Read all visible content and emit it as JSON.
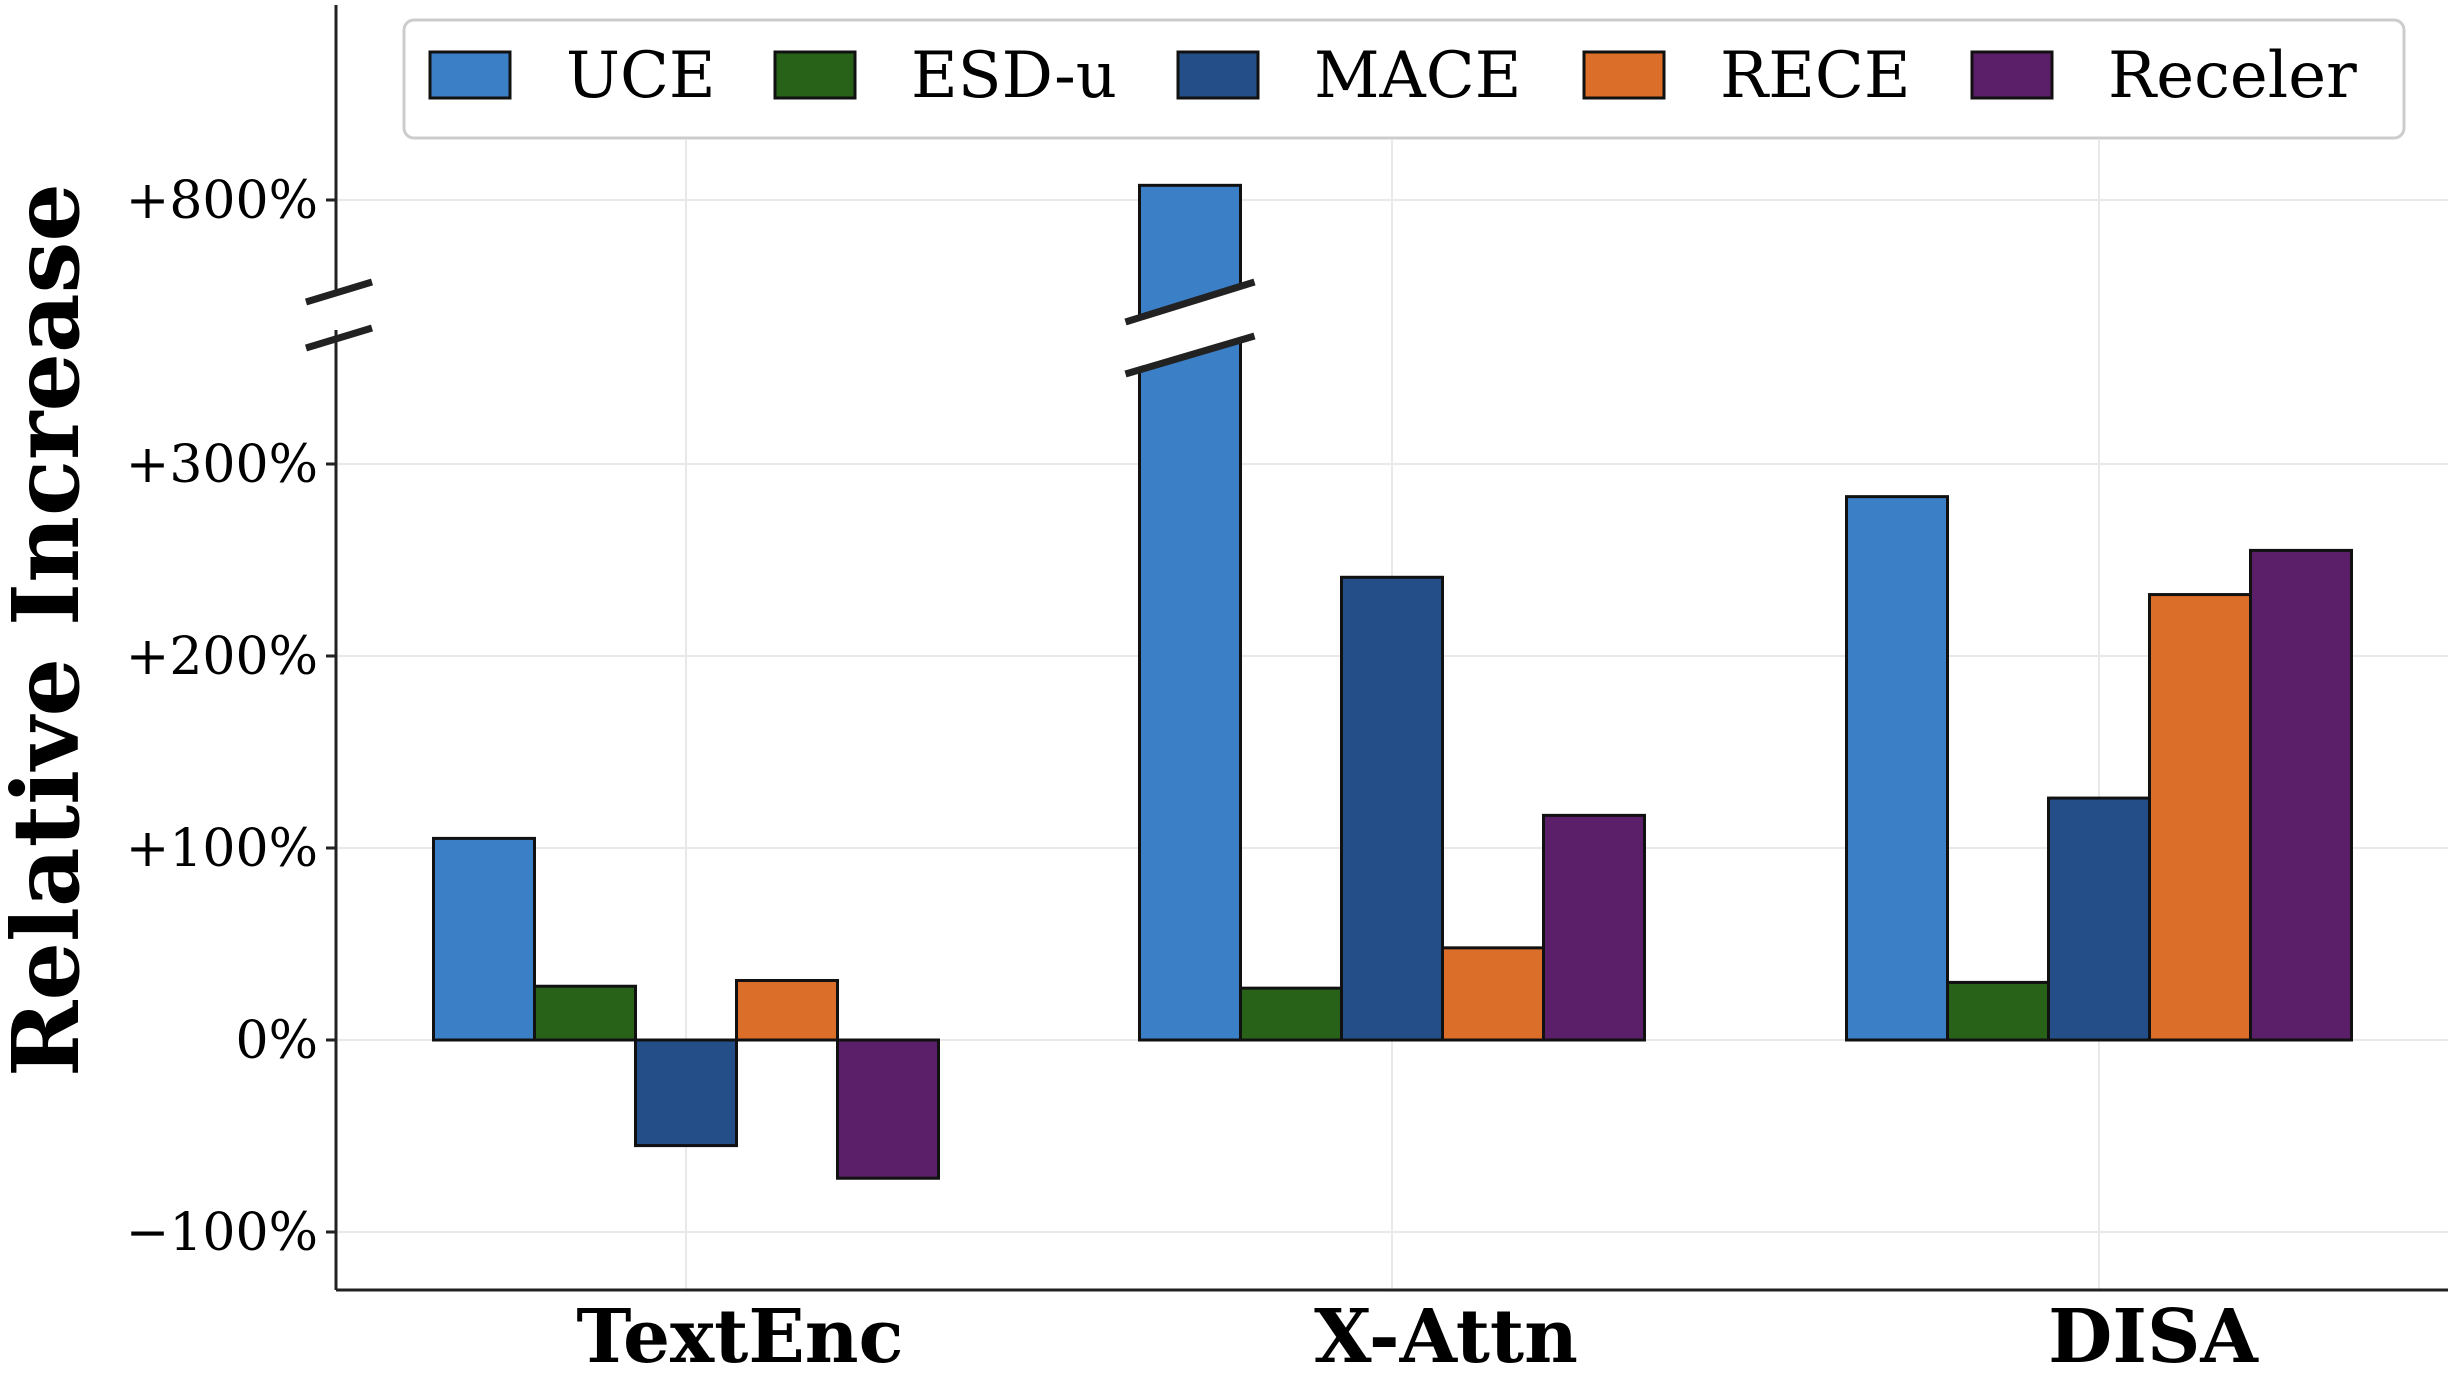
{
  "chart_data": {
    "type": "bar",
    "ylabel": "Relative Increase",
    "categories": [
      "TextEnc",
      "X-Attn",
      "DISA"
    ],
    "y_ticks": [
      {
        "value": -100,
        "label": "−100%"
      },
      {
        "value": 0,
        "label": "0%"
      },
      {
        "value": 100,
        "label": "+100%"
      },
      {
        "value": 200,
        "label": "+200%"
      },
      {
        "value": 300,
        "label": "+300%"
      },
      {
        "value": 800,
        "label": "+800%"
      }
    ],
    "ylim": [
      -125,
      820
    ],
    "axis_break": true,
    "grid": true,
    "legend": "top",
    "series": [
      {
        "name": "UCE",
        "color": "#3b7fc7",
        "values": [
          105,
          790,
          283
        ]
      },
      {
        "name": "ESD-u",
        "color": "#276218",
        "values": [
          28,
          27,
          30
        ]
      },
      {
        "name": "MACE",
        "color": "#234e88",
        "values": [
          -55,
          241,
          126
        ]
      },
      {
        "name": "RECE",
        "color": "#db6e28",
        "values": [
          31,
          48,
          232
        ]
      },
      {
        "name": "Receler",
        "color": "#5b1f6a",
        "values": [
          -72,
          117,
          255
        ]
      }
    ]
  }
}
